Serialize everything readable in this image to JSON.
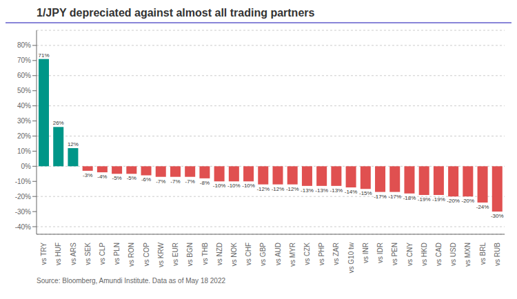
{
  "chart_data": {
    "type": "bar",
    "title": "1/JPY depreciated against almost all trading partners",
    "categories": [
      "vs TRY",
      "vs HUF",
      "vs ARS",
      "vs SEK",
      "vs CLP",
      "vs PLN",
      "vs RON",
      "vs COP",
      "vs KRW",
      "vs EUR",
      "vs BGN",
      "vs THB",
      "vs NZD",
      "vs NOK",
      "vs CHF",
      "vs GBP",
      "vs AUD",
      "vs MYR",
      "vs CZK",
      "vs PHP",
      "vs ZAR",
      "vs G10 tw",
      "vs INR",
      "vs IDR",
      "vs PEN",
      "vs CNY",
      "vs HKD",
      "vs CAD",
      "vs USD",
      "vs MXN",
      "vs BRL",
      "vs RUB"
    ],
    "values": [
      71,
      26,
      12,
      -3,
      -4,
      -5,
      -5,
      -6,
      -7,
      -7,
      -7,
      -8,
      -10,
      -10,
      -10,
      -12,
      -12,
      -12,
      -13,
      -13,
      -13,
      -14,
      -15,
      -17,
      -17,
      -18,
      -19,
      -19,
      -20,
      -20,
      -24,
      -30
    ],
    "value_labels": [
      "71%",
      "26%",
      "12%",
      "-3%",
      "-4%",
      "-5%",
      "-5%",
      "-6%",
      "-7%",
      "-7%",
      "-7%",
      "-8%",
      "-10%",
      "-10%",
      "-10%",
      "-12%",
      "-12%",
      "-12%",
      "-13%",
      "-13%",
      "-13%",
      "-14%",
      "-15%",
      "-17%",
      "-17%",
      "-18%",
      "-19%",
      "-19%",
      "-20%",
      "-20%",
      "-24%",
      "-30%"
    ],
    "colors": [
      "#009688",
      "#009688",
      "#009688",
      "#e05050",
      "#e05050",
      "#e05050",
      "#e05050",
      "#e05050",
      "#e05050",
      "#e05050",
      "#e05050",
      "#e05050",
      "#e05050",
      "#e05050",
      "#e05050",
      "#e05050",
      "#e05050",
      "#e05050",
      "#e05050",
      "#e05050",
      "#e05050",
      "#e05050",
      "#e05050",
      "#e05050",
      "#e05050",
      "#e05050",
      "#e05050",
      "#e05050",
      "#e05050",
      "#e05050",
      "#e05050",
      "#e05050"
    ],
    "ylim": [
      -45,
      90
    ],
    "yticks": [
      {
        "value": -40,
        "label": "-40%"
      },
      {
        "value": -30,
        "label": "-30%"
      },
      {
        "value": -20,
        "label": "-20%"
      },
      {
        "value": -10,
        "label": "-10%"
      },
      {
        "value": 0,
        "label": "0%"
      },
      {
        "value": 10,
        "label": "10%"
      },
      {
        "value": 20,
        "label": "20%"
      },
      {
        "value": 30,
        "label": "30%"
      },
      {
        "value": 40,
        "label": "40%"
      },
      {
        "value": 50,
        "label": "50%"
      },
      {
        "value": 60,
        "label": "60%"
      },
      {
        "value": 70,
        "label": "70%"
      },
      {
        "value": 80,
        "label": "80%"
      }
    ],
    "grid": true,
    "data_labels": true,
    "annotations": [
      "Source: Bloomberg, Amundi Institute. Data as of May 18 2022"
    ]
  }
}
